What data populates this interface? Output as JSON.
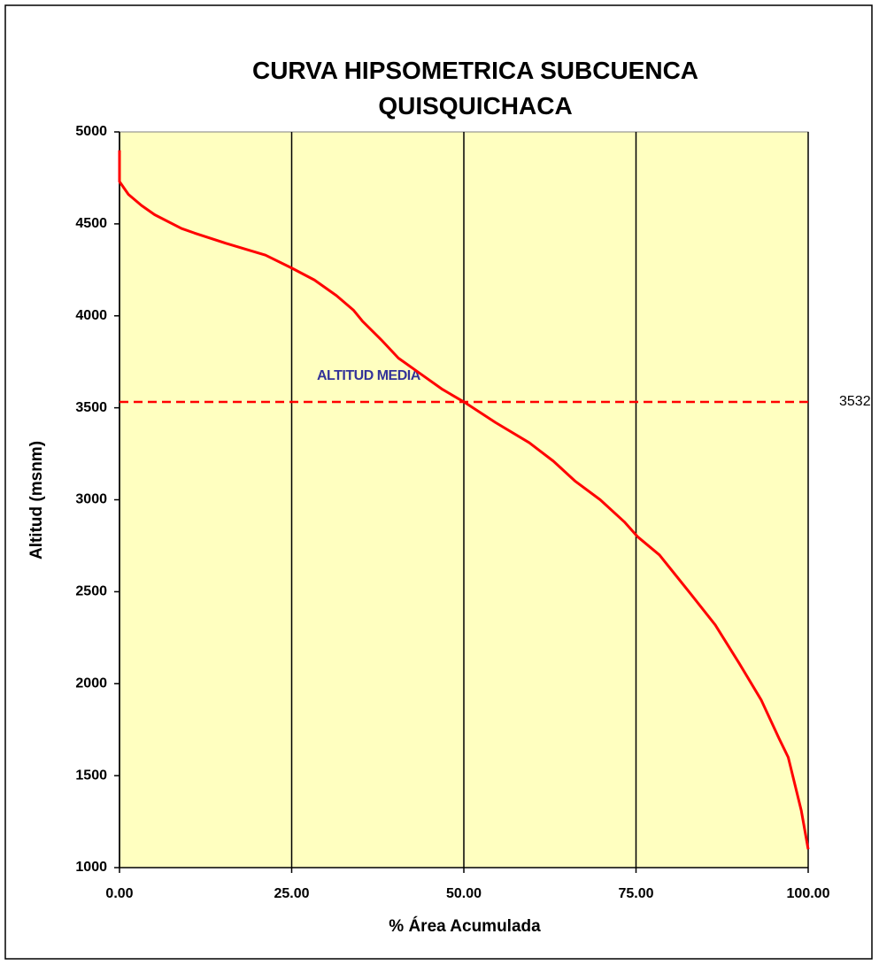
{
  "chart_data": {
    "type": "line",
    "title": "CURVA HIPSOMETRICA SUBCUENCA QUISQUICHACA",
    "xlabel": "% Área Acumulada",
    "ylabel": "Altitud (msnm)",
    "x": [
      0,
      0,
      1.3,
      3.2,
      5.1,
      9,
      10.9,
      15.4,
      21.2,
      25,
      28.3,
      31.5,
      34,
      35.3,
      38,
      40.5,
      43.7,
      46.9,
      50.1,
      54.6,
      59.5,
      63,
      66.2,
      69.8,
      73.3,
      75.2,
      78.4,
      82.9,
      86.5,
      90,
      93.2,
      95.8,
      97.1,
      99,
      100
    ],
    "values": [
      4900,
      4730,
      4660,
      4600,
      4550,
      4475,
      4450,
      4395,
      4330,
      4260,
      4195,
      4110,
      4030,
      3970,
      3870,
      3770,
      3685,
      3600,
      3530,
      3420,
      3310,
      3210,
      3100,
      3000,
      2880,
      2800,
      2700,
      2490,
      2320,
      2110,
      1910,
      1700,
      1600,
      1310,
      1100
    ],
    "color": "#ff0000",
    "mean_line": 3532,
    "mean_color": "#ff0000",
    "annotation": "ALTITUD MEDIA",
    "xlim": [
      0,
      100
    ],
    "xticks": [
      {
        "value": 0,
        "label": "0.00"
      },
      {
        "value": 25,
        "label": "25.00"
      },
      {
        "value": 50,
        "label": "50.00"
      },
      {
        "value": 75,
        "label": "75.00"
      },
      {
        "value": 100,
        "label": "100.00"
      }
    ],
    "ylim": [
      1000,
      5000
    ],
    "yticks": [
      1000,
      1500,
      2000,
      2500,
      3000,
      3500,
      4000,
      4500,
      5000
    ],
    "grid_x": true,
    "background": "#ffffc0"
  }
}
